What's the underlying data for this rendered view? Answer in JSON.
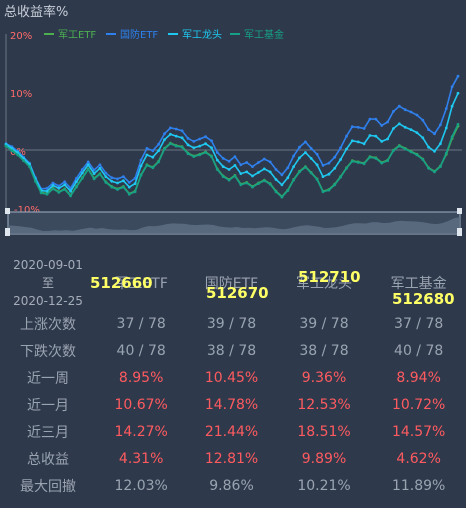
{
  "chart_data": {
    "type": "line",
    "title": "总收益率%",
    "y_ticks": [
      "20%",
      "10%",
      "0%",
      "-10%"
    ],
    "ylim": [
      -10,
      20
    ],
    "series": [
      {
        "name": "军工ETF",
        "color": "#4caf50",
        "values": [
          1.0,
          0.2,
          -0.5,
          -1.5,
          -2.5,
          -5.0,
          -7.0,
          -7.2,
          -6.3,
          -6.9,
          -6.4,
          -7.5,
          -6.0,
          -4.5,
          -3.0,
          -4.6,
          -3.8,
          -5.2,
          -6.0,
          -6.4,
          -6.0,
          -7.2,
          -6.8,
          -4.0,
          -2.3,
          -2.7,
          -1.7,
          0.5,
          1.4,
          1.0,
          0.8,
          -0.3,
          -0.8,
          -0.5,
          -0.1,
          -0.8,
          -3.0,
          -4.2,
          -4.8,
          -4.1,
          -5.6,
          -5.3,
          -6.0,
          -5.4,
          -4.9,
          -5.5,
          -6.8,
          -7.7,
          -6.6,
          -4.8,
          -3.4,
          -2.6,
          -3.6,
          -4.7,
          -6.8,
          -6.5,
          -5.6,
          -4.3,
          -2.8,
          -1.6,
          -1.8,
          -2.0,
          -0.9,
          -1.1,
          -1.9,
          -1.5,
          0.2,
          1.0,
          0.5,
          0.0,
          -0.5,
          -1.3,
          -2.8,
          -3.4,
          -2.5,
          -0.5,
          2.2,
          4.3
        ]
      },
      {
        "name": "国防ETF",
        "color": "#2f80ed",
        "values": [
          1.3,
          0.8,
          0.0,
          -1.0,
          -2.0,
          -4.5,
          -6.4,
          -6.3,
          -5.4,
          -5.9,
          -5.2,
          -6.3,
          -4.6,
          -3.1,
          -1.8,
          -3.2,
          -2.3,
          -3.7,
          -4.5,
          -4.7,
          -4.3,
          -5.3,
          -4.6,
          -1.5,
          0.5,
          0.1,
          1.2,
          3.0,
          4.0,
          3.8,
          3.5,
          2.2,
          1.7,
          2.1,
          2.5,
          1.8,
          -0.2,
          -1.2,
          -1.7,
          -0.9,
          -2.3,
          -1.9,
          -2.6,
          -1.9,
          -1.3,
          -1.8,
          -3.1,
          -4.0,
          -2.8,
          -0.8,
          0.7,
          1.6,
          0.5,
          -0.5,
          -2.4,
          -2.0,
          -1.0,
          0.6,
          2.6,
          4.2,
          4.1,
          3.9,
          5.5,
          5.5,
          4.4,
          5.0,
          6.8,
          7.7,
          7.1,
          6.7,
          6.2,
          5.3,
          3.7,
          3.0,
          4.5,
          7.3,
          11.0,
          12.8
        ]
      },
      {
        "name": "军工龙头",
        "color": "#1ec8f0",
        "values": [
          1.2,
          0.5,
          -0.2,
          -1.2,
          -2.2,
          -4.7,
          -6.7,
          -6.8,
          -5.8,
          -6.3,
          -5.7,
          -6.8,
          -5.2,
          -3.7,
          -2.3,
          -3.8,
          -2.9,
          -4.3,
          -5.1,
          -5.4,
          -5.0,
          -6.1,
          -5.5,
          -2.5,
          -0.6,
          -1.0,
          0.1,
          2.0,
          2.9,
          2.6,
          2.3,
          1.1,
          0.6,
          0.9,
          1.3,
          0.6,
          -1.5,
          -2.6,
          -3.1,
          -2.4,
          -3.8,
          -3.5,
          -4.2,
          -3.6,
          -3.0,
          -3.5,
          -4.8,
          -5.7,
          -4.5,
          -2.6,
          -1.1,
          -0.2,
          -1.2,
          -2.3,
          -4.3,
          -3.9,
          -2.9,
          -1.4,
          0.4,
          1.8,
          1.6,
          1.3,
          2.7,
          2.6,
          1.7,
          2.1,
          3.9,
          4.7,
          4.1,
          3.7,
          3.2,
          2.3,
          0.7,
          0.0,
          1.3,
          4.0,
          7.7,
          9.9
        ]
      },
      {
        "name": "军工基金",
        "color": "#16a085",
        "values": [
          0.9,
          0.1,
          -0.6,
          -1.6,
          -2.6,
          -5.1,
          -7.1,
          -7.3,
          -6.4,
          -7.0,
          -6.5,
          -7.6,
          -6.1,
          -4.6,
          -3.1,
          -4.7,
          -3.9,
          -5.3,
          -6.1,
          -6.5,
          -6.1,
          -7.3,
          -6.9,
          -4.1,
          -2.4,
          -2.8,
          -1.8,
          0.4,
          1.3,
          0.9,
          0.7,
          -0.4,
          -0.9,
          -0.6,
          -0.2,
          -0.9,
          -3.1,
          -4.3,
          -4.9,
          -4.2,
          -5.7,
          -5.4,
          -6.1,
          -5.5,
          -5.0,
          -5.6,
          -6.9,
          -7.8,
          -6.7,
          -4.9,
          -3.5,
          -2.7,
          -3.7,
          -4.8,
          -6.9,
          -6.6,
          -5.7,
          -4.4,
          -2.9,
          -1.7,
          -1.9,
          -2.1,
          -1.0,
          -1.2,
          -2.0,
          -1.6,
          0.1,
          0.9,
          0.4,
          -0.1,
          -0.6,
          -1.4,
          -2.9,
          -3.5,
          -2.6,
          -0.3,
          2.5,
          4.6
        ]
      }
    ]
  },
  "header": {
    "period_start": "2020-09-01",
    "period_sep": "至",
    "period_end": "2020-12-25"
  },
  "funds": [
    {
      "name": "军工ETF",
      "code": "512660"
    },
    {
      "name": "国防ETF",
      "code": "512670"
    },
    {
      "name": "军工龙头",
      "code": "512710"
    },
    {
      "name": "军工基金",
      "code": "512680"
    }
  ],
  "rows": [
    {
      "label": "上涨次数",
      "values": [
        "37 / 78",
        "39 / 78",
        "39 / 78",
        "37 / 78"
      ],
      "highlight": false
    },
    {
      "label": "下跌次数",
      "values": [
        "40 / 78",
        "38 / 78",
        "38 / 78",
        "40 / 78"
      ],
      "highlight": false
    },
    {
      "label": "近一周",
      "values": [
        "8.95%",
        "10.45%",
        "9.36%",
        "8.94%"
      ],
      "highlight": true
    },
    {
      "label": "近一月",
      "values": [
        "10.67%",
        "14.78%",
        "12.53%",
        "10.72%"
      ],
      "highlight": true
    },
    {
      "label": "近三月",
      "values": [
        "14.27%",
        "21.44%",
        "18.51%",
        "14.57%"
      ],
      "highlight": true
    },
    {
      "label": "总收益",
      "values": [
        "4.31%",
        "12.81%",
        "9.89%",
        "4.62%"
      ],
      "highlight": true
    },
    {
      "label": "最大回撤",
      "values": [
        "12.03%",
        "9.86%",
        "10.21%",
        "11.89%"
      ],
      "highlight": false
    }
  ]
}
